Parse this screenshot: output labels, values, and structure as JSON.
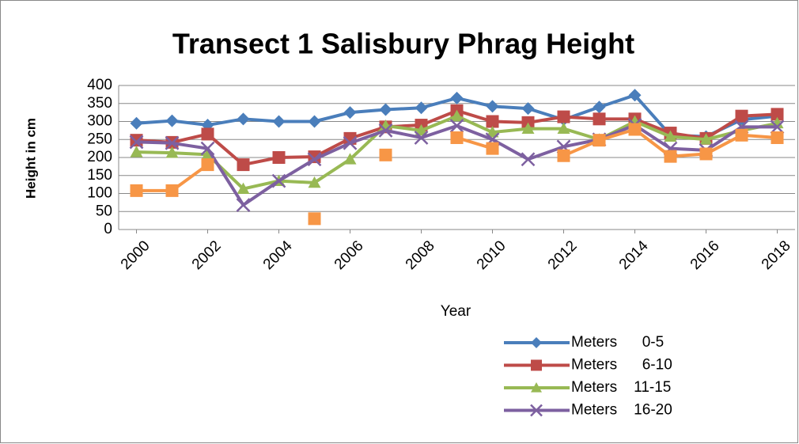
{
  "chart_data": {
    "type": "line",
    "title": "Transect 1 Salisbury Phrag Height",
    "x_label": "Year",
    "y_label": "Height in cm",
    "x": [
      2000,
      2001,
      2002,
      2003,
      2004,
      2005,
      2006,
      2007,
      2008,
      2009,
      2010,
      2011,
      2012,
      2013,
      2014,
      2015,
      2016,
      2017,
      2018
    ],
    "xlim": [
      1999.5,
      2018.5
    ],
    "xticks": [
      2000,
      2002,
      2004,
      2006,
      2008,
      2010,
      2012,
      2014,
      2016,
      2018
    ],
    "ylim": [
      0,
      400
    ],
    "yticks": [
      0,
      50,
      100,
      150,
      200,
      250,
      300,
      350,
      400
    ],
    "grid": true,
    "legend": "bottom-right",
    "series": [
      {
        "name": "Meters      0-5",
        "color": "#4a7ebb",
        "marker": "diamond",
        "values": [
          295,
          302,
          290,
          307,
          300,
          300,
          325,
          333,
          338,
          365,
          342,
          336,
          305,
          340,
          373,
          262,
          258,
          305,
          315
        ]
      },
      {
        "name": "Meters      6-10",
        "color": "#be4b48",
        "marker": "square",
        "values": [
          248,
          242,
          265,
          180,
          200,
          202,
          253,
          285,
          290,
          330,
          300,
          297,
          313,
          307,
          307,
          268,
          253,
          315,
          320
        ]
      },
      {
        "name": "Meters    11-15",
        "color": "#98b954",
        "marker": "triangle",
        "values": [
          215,
          213,
          208,
          113,
          135,
          130,
          195,
          288,
          275,
          315,
          270,
          280,
          280,
          250,
          300,
          258,
          250,
          275,
          295
        ]
      },
      {
        "name": "Meters    16-20",
        "color": "#7d60a0",
        "marker": "x",
        "values": [
          243,
          240,
          225,
          68,
          135,
          195,
          240,
          275,
          255,
          288,
          250,
          195,
          230,
          250,
          290,
          225,
          220,
          285,
          285
        ]
      },
      {
        "color": "#f79646",
        "marker": "square",
        "values": [
          108,
          108,
          180,
          null,
          null,
          30,
          null,
          207,
          null,
          255,
          225,
          null,
          205,
          248,
          278,
          203,
          210,
          262,
          255
        ]
      }
    ]
  }
}
